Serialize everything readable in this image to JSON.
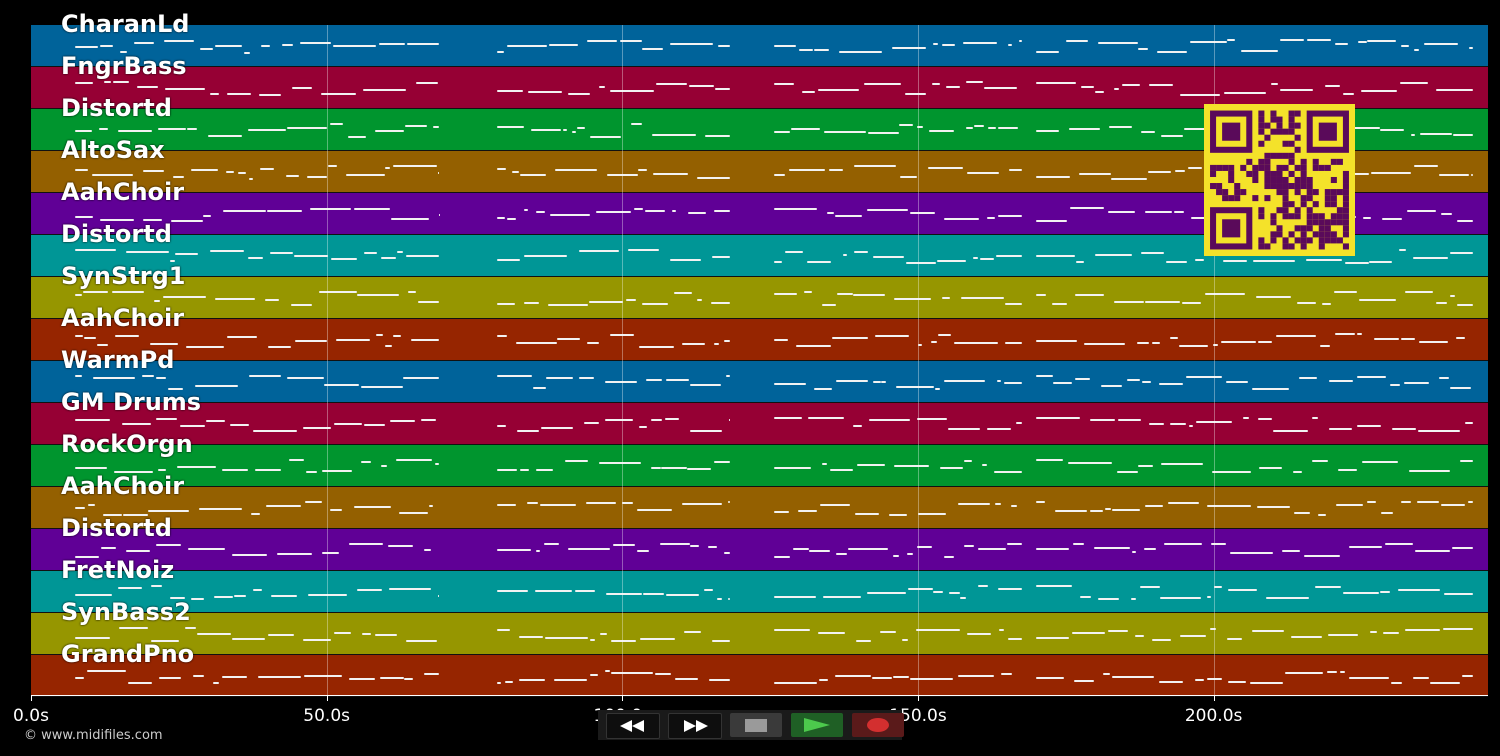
{
  "tracks": [
    {
      "name": "CharanLd",
      "color": "#00639a"
    },
    {
      "name": "FngrBass",
      "color": "#960034"
    },
    {
      "name": "Distortd",
      "color": "#00952e"
    },
    {
      "name": "AltoSax",
      "color": "#946000"
    },
    {
      "name": "AahChoir",
      "color": "#600096"
    },
    {
      "name": "Distortd",
      "color": "#009696"
    },
    {
      "name": "SynStrg1",
      "color": "#969600"
    },
    {
      "name": "AahChoir",
      "color": "#962500"
    },
    {
      "name": "WarmPd",
      "color": "#00639a"
    },
    {
      "name": "GM Drums",
      "color": "#960034"
    },
    {
      "name": "RockOrgn",
      "color": "#00952e"
    },
    {
      "name": "AahChoir",
      "color": "#946000"
    },
    {
      "name": "Distortd",
      "color": "#600096"
    },
    {
      "name": "FretNoiz",
      "color": "#009696"
    },
    {
      "name": "SynBass2",
      "color": "#969600"
    },
    {
      "name": "GrandPno",
      "color": "#962500"
    }
  ],
  "timeline": {
    "ticks": [
      "0.0s",
      "50.0s",
      "100.0s",
      "150.0s",
      "200.0s"
    ],
    "tick_values": [
      0,
      50,
      100,
      150,
      200
    ],
    "max_seconds": 246.4
  },
  "transport": {
    "rewind_icon": "rewind-icon",
    "fastforward_icon": "fast-forward-icon",
    "stop_icon": "stop-icon",
    "play_icon": "play-icon",
    "record_icon": "record-icon",
    "play_color": "#2e7d32",
    "record_color": "#c62828"
  },
  "footer": {
    "copyright": "© www.midifiles.com"
  },
  "qr": {
    "foreground": "#5a0a5a",
    "background": "#f4e22a"
  }
}
